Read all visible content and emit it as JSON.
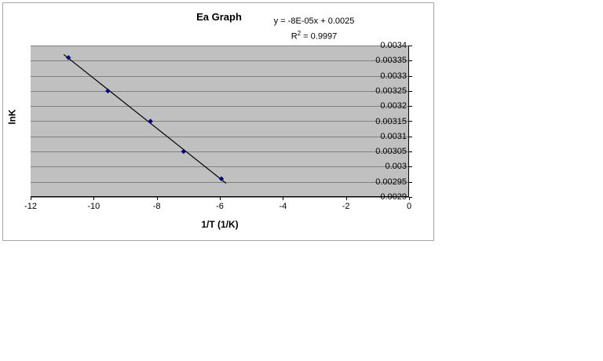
{
  "window": {
    "background": "#ffffff"
  },
  "chart_data": {
    "type": "scatter",
    "title": "Ea Graph",
    "xlabel": "1/T (1/K)",
    "ylabel": "lnK",
    "xlim": [
      -12,
      0
    ],
    "ylim": [
      0.0029,
      0.0034
    ],
    "x_ticks": [
      -12,
      -10,
      -8,
      -6,
      -4,
      -2,
      0
    ],
    "y_ticks": [
      0.0034,
      0.00335,
      0.0033,
      0.00325,
      0.0032,
      0.00315,
      0.0031,
      0.00305,
      0.003,
      0.00295,
      0.0029
    ],
    "points": [
      [
        -10.8,
        0.00336
      ],
      [
        -9.55,
        0.00325
      ],
      [
        -8.2,
        0.00315
      ],
      [
        -7.15,
        0.00305
      ],
      [
        -5.95,
        0.00296
      ]
    ],
    "trendline": {
      "equation": "y = -8E-05x + 0.0025",
      "r2_prefix": "R",
      "r2_sup": "2",
      "r2_suffix": " = 0.9997"
    },
    "grid": true,
    "legend": "none",
    "colors": {
      "plot_background": "#c0c0c0",
      "gridline": "#808080",
      "axis": "#000000",
      "point": "#000080",
      "trendline": "#000000",
      "chart_border": "#a6a6a6",
      "text": "#000000"
    }
  }
}
